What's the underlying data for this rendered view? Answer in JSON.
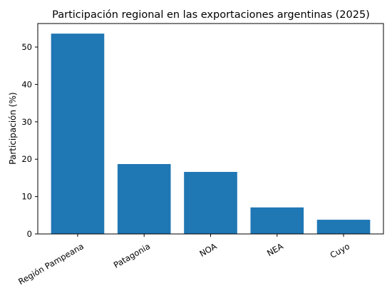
{
  "chart_data": {
    "type": "bar",
    "title": "Participación regional en las exportaciones argentinas (2025)",
    "xlabel": "",
    "ylabel": "Participación (%)",
    "categories": [
      "Región Pampeana",
      "Patagonia",
      "NOA",
      "NEA",
      "Cuyo"
    ],
    "values": [
      53.6,
      18.7,
      16.6,
      7.1,
      3.8
    ],
    "ylim": [
      0,
      56.3
    ],
    "yticks": [
      0,
      10,
      20,
      30,
      40,
      50
    ],
    "grid": false,
    "bar_color": "#1f77b4"
  }
}
